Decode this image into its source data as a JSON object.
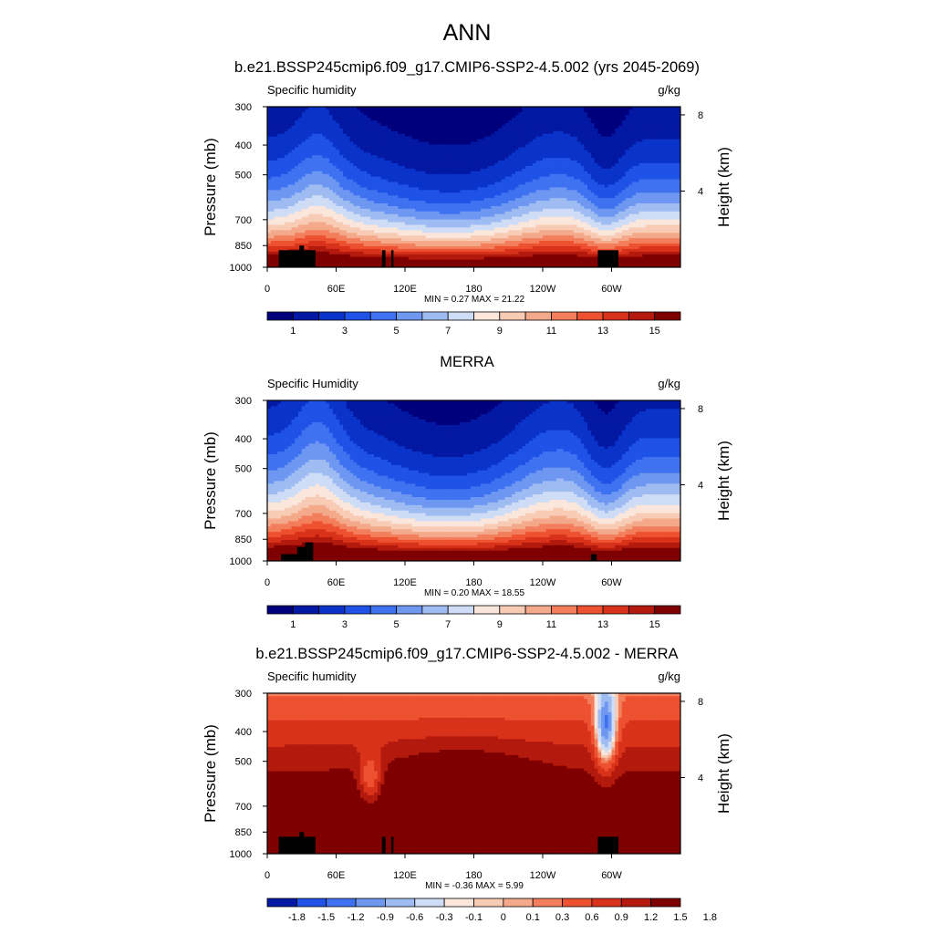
{
  "figure": {
    "title": "ANN",
    "colors": {
      "absolute": [
        "#00007d",
        "#0318a3",
        "#0a34c9",
        "#1f52e6",
        "#3f72f0",
        "#6e97f2",
        "#9fbcf2",
        "#cfdcf6",
        "#fbe6dc",
        "#f8cbb5",
        "#f4a98a",
        "#f27e5c",
        "#ed5130",
        "#d9321a",
        "#b31a0d",
        "#7f0000"
      ],
      "difference": [
        "#0318a3",
        "#1f52e6",
        "#3f72f0",
        "#6e97f2",
        "#9fbcf2",
        "#cfdcf6",
        "#fbe6dc",
        "#f8cbb5",
        "#f4a98a",
        "#f27e5c",
        "#ed5130",
        "#d9321a",
        "#b31a0d",
        "#7f0000"
      ]
    }
  },
  "chart_data": [
    {
      "type": "heatmap",
      "title": "b.e21.BSSP245cmip6.f09_g17.CMIP6-SSP2-4.5.002 (yrs 2045-2069)",
      "left_label": "Specific humidity",
      "right_label": "g/kg",
      "ylabel": "Pressure (mb)",
      "ylabel_right": "Height (km)",
      "x_ticks": [
        "0",
        "60E",
        "120E",
        "180",
        "120W",
        "60W"
      ],
      "y_ticks": [
        "300",
        "400",
        "500",
        "700",
        "850",
        "1000"
      ],
      "height_ticks": [
        "8",
        "4"
      ],
      "stats": "MIN =   0.27  MAX =  21.22",
      "colorbar_labels": [
        "1",
        "3",
        "5",
        "7",
        "9",
        "11",
        "13",
        "15"
      ],
      "colorbar_levels": [
        1,
        2,
        3,
        4,
        5,
        6,
        7,
        8,
        9,
        10,
        11,
        12,
        13,
        14,
        15
      ],
      "xlim": [
        0,
        360
      ],
      "ylim": [
        1000,
        300
      ],
      "terrain": [
        [
          10,
          32,
          880
        ],
        [
          28,
          32,
          850
        ],
        [
          32,
          42,
          880
        ],
        [
          100,
          103,
          880
        ],
        [
          108,
          110,
          880
        ],
        [
          288,
          306,
          880
        ]
      ]
    },
    {
      "type": "heatmap",
      "title": "MERRA",
      "left_label": "Specific Humidity",
      "right_label": "g/kg",
      "ylabel": "Pressure (mb)",
      "ylabel_right": "Height (km)",
      "x_ticks": [
        "0",
        "60E",
        "120E",
        "180",
        "120W",
        "60W"
      ],
      "y_ticks": [
        "300",
        "400",
        "500",
        "700",
        "850",
        "1000"
      ],
      "height_ticks": [
        "8",
        "4"
      ],
      "stats": "MIN =   0.20  MAX =  18.55",
      "colorbar_labels": [
        "1",
        "3",
        "5",
        "7",
        "9",
        "11",
        "13",
        "15"
      ],
      "colorbar_levels": [
        1,
        2,
        3,
        4,
        5,
        6,
        7,
        8,
        9,
        10,
        11,
        12,
        13,
        14,
        15
      ],
      "xlim": [
        0,
        360
      ],
      "ylim": [
        1000,
        300
      ],
      "terrain": [
        [
          12,
          28,
          950
        ],
        [
          26,
          33,
          900
        ],
        [
          33,
          40,
          870
        ],
        [
          282,
          287,
          950
        ]
      ]
    },
    {
      "type": "heatmap",
      "title": "b.e21.BSSP245cmip6.f09_g17.CMIP6-SSP2-4.5.002 - MERRA",
      "left_label": "Specific humidity",
      "right_label": "g/kg",
      "ylabel": "Pressure (mb)",
      "ylabel_right": "Height (km)",
      "x_ticks": [
        "0",
        "60E",
        "120E",
        "180",
        "120W",
        "60W"
      ],
      "y_ticks": [
        "300",
        "400",
        "500",
        "700",
        "850",
        "1000"
      ],
      "height_ticks": [
        "8",
        "4"
      ],
      "stats": "MIN =  -0.36  MAX =   5.99",
      "colorbar_labels": [
        "-1.8",
        "-1.5",
        "-1.2",
        "-0.9",
        "-0.6",
        "-0.3",
        "-0.1",
        "0",
        "0.1",
        "0.3",
        "0.6",
        "0.9",
        "1.2",
        "1.5",
        "1.8"
      ],
      "colorbar_levels": [
        -1.8,
        -1.5,
        -1.2,
        -0.9,
        -0.6,
        -0.3,
        -0.1,
        0,
        0.1,
        0.3,
        0.6,
        0.9,
        1.2,
        1.5,
        1.8
      ],
      "xlim": [
        0,
        360
      ],
      "ylim": [
        1000,
        300
      ],
      "terrain": [
        [
          10,
          32,
          880
        ],
        [
          28,
          32,
          850
        ],
        [
          32,
          42,
          880
        ],
        [
          100,
          103,
          880
        ],
        [
          108,
          110,
          880
        ],
        [
          288,
          306,
          880
        ]
      ]
    }
  ]
}
